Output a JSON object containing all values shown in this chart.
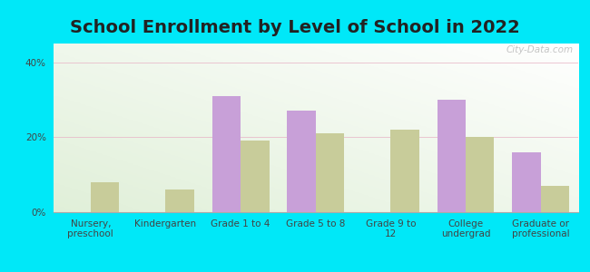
{
  "title": "School Enrollment by Level of School in 2022",
  "categories": [
    "Nursery,\npreschool",
    "Kindergarten",
    "Grade 1 to 4",
    "Grade 5 to 8",
    "Grade 9 to\n12",
    "College\nundergrad",
    "Graduate or\nprofessional"
  ],
  "series1_values": [
    0,
    0,
    31,
    27,
    0,
    30,
    16
  ],
  "series2_values": [
    8,
    6,
    19,
    21,
    22,
    20,
    7
  ],
  "series1_color": "#c8a0d8",
  "series2_color": "#c8cc9a",
  "bar_width": 0.38,
  "ylim": [
    0,
    45
  ],
  "yticks": [
    0,
    20,
    40
  ],
  "ytick_labels": [
    "0%",
    "20%",
    "40%"
  ],
  "background_color": "#00e8f8",
  "plot_bg_color": "#eef5e8",
  "title_fontsize": 14,
  "tick_fontsize": 7.5,
  "legend_fontsize": 9,
  "watermark": "City-Data.com",
  "series1_dot_color": "#d4a0d4",
  "series2_dot_color": "#c8cc96",
  "title_color": "#222222"
}
